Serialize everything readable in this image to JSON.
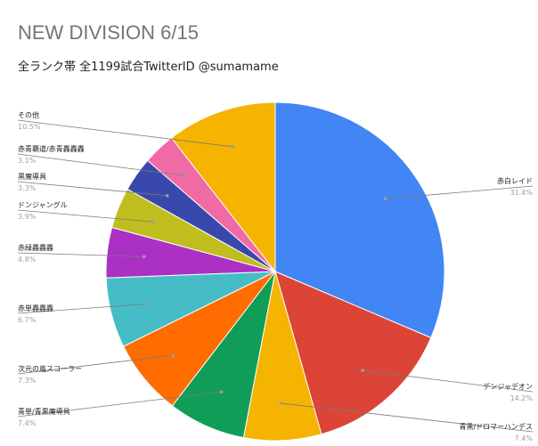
{
  "title": "NEW DIVISION 6/15",
  "subtitle": "全ランク帯 全1199試合TwitterID @sumamame",
  "chart_data": {
    "type": "pie",
    "title": "NEW DIVISION 6/15",
    "subtitle": "全ランク帯 全1199試合TwitterID @sumamame",
    "start_angle_deg": 0,
    "direction": "clockwise",
    "slices": [
      {
        "label": "赤白レイド",
        "value": 31.4,
        "pct_label": "31.4%",
        "color": "#4285f4",
        "side": "right"
      },
      {
        "label": "デンジャデオン",
        "value": 14.2,
        "pct_label": "14.2%",
        "color": "#db4437",
        "side": "right"
      },
      {
        "label": "青黒/ドロマーハンデス",
        "value": 7.4,
        "pct_label": "7.4%",
        "color": "#f4b400",
        "side": "right"
      },
      {
        "label": "青単/青黒魔導具",
        "value": 7.4,
        "pct_label": "7.4%",
        "color": "#0f9d58",
        "side": "left"
      },
      {
        "label": "次元の嵐スコーラー",
        "value": 7.3,
        "pct_label": "7.3%",
        "color": "#ff6d00",
        "side": "left"
      },
      {
        "label": "赤単轟轟轟",
        "value": 6.7,
        "pct_label": "6.7%",
        "color": "#46bdc6",
        "side": "left"
      },
      {
        "label": "赤緑轟轟轟",
        "value": 4.8,
        "pct_label": "4.8%",
        "color": "#ab30c4",
        "side": "left"
      },
      {
        "label": "ドンジャングル",
        "value": 3.9,
        "pct_label": "3.9%",
        "color": "#c0bd1f",
        "side": "left"
      },
      {
        "label": "黒魔導具",
        "value": 3.3,
        "pct_label": "3.3%",
        "color": "#3949ab",
        "side": "left"
      },
      {
        "label": "赤青覇道/赤青轟轟轟",
        "value": 3.1,
        "pct_label": "3.1%",
        "color": "#f06ba6",
        "side": "left"
      },
      {
        "label": "その他",
        "value": 10.5,
        "pct_label": "10.5%",
        "color": "#f4b400",
        "side": "left"
      }
    ]
  }
}
